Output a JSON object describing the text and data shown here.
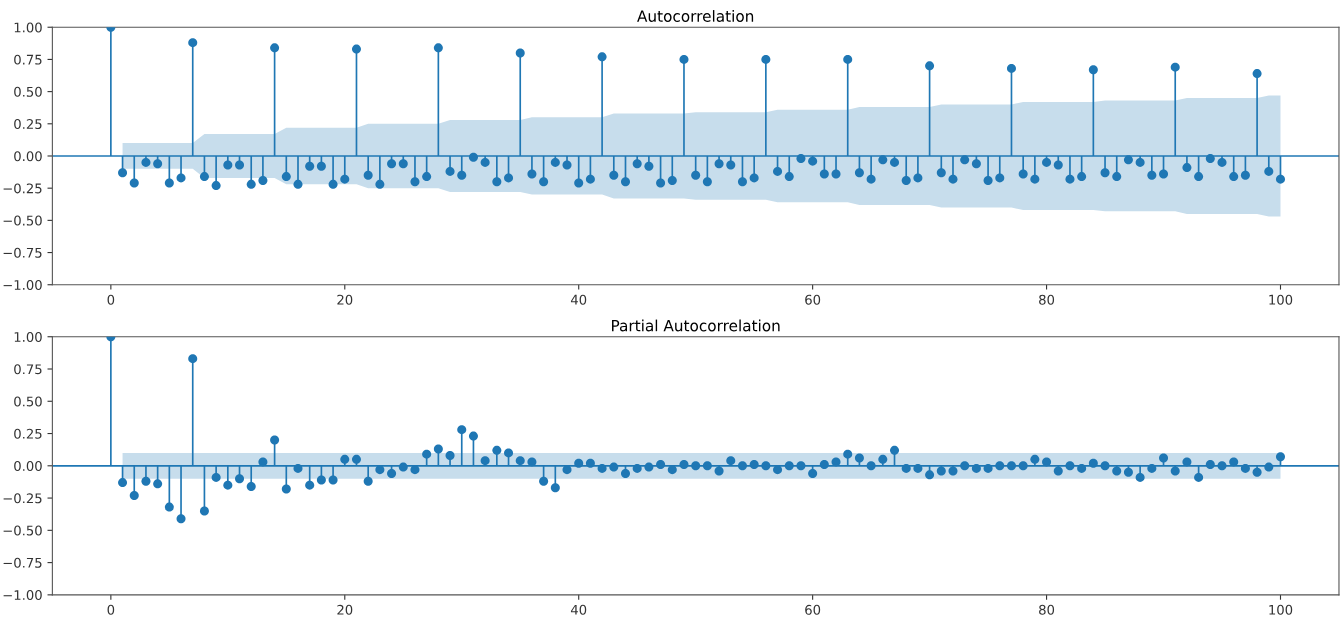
{
  "chart_data": [
    {
      "type": "lollipop",
      "title": "Autocorrelation",
      "grid": false,
      "xlim": [
        -5,
        105
      ],
      "xticks": [
        0,
        20,
        40,
        60,
        80,
        100
      ],
      "ylim": [
        -1,
        1
      ],
      "yticks": [
        {
          "value": -1,
          "label": "−1.00"
        },
        {
          "value": -0.75,
          "label": "−0.75"
        },
        {
          "value": -0.5,
          "label": "−0.50"
        },
        {
          "value": -0.25,
          "label": "−0.25"
        },
        {
          "value": 0,
          "label": "0.00"
        },
        {
          "value": 0.25,
          "label": "0.25"
        },
        {
          "value": 0.5,
          "label": "0.50"
        },
        {
          "value": 0.75,
          "label": "0.75"
        },
        {
          "value": 1,
          "label": "1.00"
        }
      ],
      "marker": "circle",
      "x": [
        0,
        1,
        2,
        3,
        4,
        5,
        6,
        7,
        8,
        9,
        10,
        11,
        12,
        13,
        14,
        15,
        16,
        17,
        18,
        19,
        20,
        21,
        22,
        23,
        24,
        25,
        26,
        27,
        28,
        29,
        30,
        31,
        32,
        33,
        34,
        35,
        36,
        37,
        38,
        39,
        40,
        41,
        42,
        43,
        44,
        45,
        46,
        47,
        48,
        49,
        50,
        51,
        52,
        53,
        54,
        55,
        56,
        57,
        58,
        59,
        60,
        61,
        62,
        63,
        64,
        65,
        66,
        67,
        68,
        69,
        70,
        71,
        72,
        73,
        74,
        75,
        76,
        77,
        78,
        79,
        80,
        81,
        82,
        83,
        84,
        85,
        86,
        87,
        88,
        89,
        90,
        91,
        92,
        93,
        94,
        95,
        96,
        97,
        98,
        99,
        100
      ],
      "ref_lines": [
        {
          "axis": "y",
          "value": 0,
          "color": "#1f77b4",
          "line_style": "solid"
        }
      ],
      "series": [
        {
          "color": "#1f77b4",
          "values": [
            1.0,
            -0.13,
            -0.21,
            -0.05,
            -0.06,
            -0.21,
            -0.17,
            0.88,
            -0.16,
            -0.23,
            -0.07,
            -0.07,
            -0.22,
            -0.19,
            0.84,
            -0.16,
            -0.22,
            -0.08,
            -0.08,
            -0.22,
            -0.18,
            0.83,
            -0.15,
            -0.22,
            -0.06,
            -0.06,
            -0.2,
            -0.16,
            0.84,
            -0.12,
            -0.15,
            -0.01,
            -0.05,
            -0.2,
            -0.17,
            0.8,
            -0.14,
            -0.2,
            -0.05,
            -0.07,
            -0.21,
            -0.18,
            0.77,
            -0.15,
            -0.2,
            -0.06,
            -0.08,
            -0.21,
            -0.19,
            0.75,
            -0.15,
            -0.2,
            -0.06,
            -0.07,
            -0.2,
            -0.17,
            0.75,
            -0.12,
            -0.16,
            -0.02,
            -0.04,
            -0.14,
            -0.14,
            0.75,
            -0.13,
            -0.18,
            -0.03,
            -0.05,
            -0.19,
            -0.17,
            0.7,
            -0.13,
            -0.18,
            -0.03,
            -0.06,
            -0.19,
            -0.17,
            0.68,
            -0.14,
            -0.18,
            -0.05,
            -0.07,
            -0.18,
            -0.16,
            0.67,
            -0.13,
            -0.16,
            -0.03,
            -0.05,
            -0.15,
            -0.14,
            0.69,
            -0.09,
            -0.16,
            -0.02,
            -0.05,
            -0.16,
            -0.15,
            0.64,
            -0.12,
            -0.18
          ],
          "lower": [
            null,
            -0.1,
            -0.1,
            -0.1,
            -0.1,
            -0.1,
            -0.1,
            -0.1,
            -0.17,
            -0.17,
            -0.17,
            -0.17,
            -0.17,
            -0.17,
            -0.17,
            -0.22,
            -0.22,
            -0.22,
            -0.22,
            -0.22,
            -0.22,
            -0.22,
            -0.25,
            -0.25,
            -0.25,
            -0.25,
            -0.25,
            -0.25,
            -0.25,
            -0.28,
            -0.28,
            -0.28,
            -0.28,
            -0.28,
            -0.28,
            -0.28,
            -0.3,
            -0.3,
            -0.3,
            -0.3,
            -0.3,
            -0.3,
            -0.3,
            -0.33,
            -0.33,
            -0.33,
            -0.33,
            -0.33,
            -0.33,
            -0.33,
            -0.34,
            -0.34,
            -0.34,
            -0.34,
            -0.34,
            -0.34,
            -0.34,
            -0.36,
            -0.36,
            -0.36,
            -0.36,
            -0.36,
            -0.36,
            -0.36,
            -0.38,
            -0.38,
            -0.38,
            -0.38,
            -0.38,
            -0.38,
            -0.38,
            -0.4,
            -0.4,
            -0.4,
            -0.4,
            -0.4,
            -0.4,
            -0.4,
            -0.42,
            -0.42,
            -0.42,
            -0.42,
            -0.42,
            -0.42,
            -0.42,
            -0.43,
            -0.43,
            -0.43,
            -0.43,
            -0.43,
            -0.43,
            -0.43,
            -0.45,
            -0.45,
            -0.45,
            -0.45,
            -0.45,
            -0.45,
            -0.45,
            -0.47,
            -0.47
          ],
          "upper": [
            null,
            0.1,
            0.1,
            0.1,
            0.1,
            0.1,
            0.1,
            0.1,
            0.17,
            0.17,
            0.17,
            0.17,
            0.17,
            0.17,
            0.17,
            0.22,
            0.22,
            0.22,
            0.22,
            0.22,
            0.22,
            0.22,
            0.25,
            0.25,
            0.25,
            0.25,
            0.25,
            0.25,
            0.25,
            0.28,
            0.28,
            0.28,
            0.28,
            0.28,
            0.28,
            0.28,
            0.3,
            0.3,
            0.3,
            0.3,
            0.3,
            0.3,
            0.3,
            0.33,
            0.33,
            0.33,
            0.33,
            0.33,
            0.33,
            0.33,
            0.34,
            0.34,
            0.34,
            0.34,
            0.34,
            0.34,
            0.34,
            0.36,
            0.36,
            0.36,
            0.36,
            0.36,
            0.36,
            0.36,
            0.38,
            0.38,
            0.38,
            0.38,
            0.38,
            0.38,
            0.38,
            0.4,
            0.4,
            0.4,
            0.4,
            0.4,
            0.4,
            0.4,
            0.42,
            0.42,
            0.42,
            0.42,
            0.42,
            0.42,
            0.42,
            0.43,
            0.43,
            0.43,
            0.43,
            0.43,
            0.43,
            0.43,
            0.45,
            0.45,
            0.45,
            0.45,
            0.45,
            0.45,
            0.45,
            0.47,
            0.47
          ]
        }
      ]
    },
    {
      "type": "lollipop",
      "title": "Partial Autocorrelation",
      "grid": false,
      "xlim": [
        -5,
        105
      ],
      "xticks": [
        0,
        20,
        40,
        60,
        80,
        100
      ],
      "ylim": [
        -1,
        1
      ],
      "yticks": [
        {
          "value": -1,
          "label": "−1.00"
        },
        {
          "value": -0.75,
          "label": "−0.75"
        },
        {
          "value": -0.5,
          "label": "−0.50"
        },
        {
          "value": -0.25,
          "label": "−0.25"
        },
        {
          "value": 0,
          "label": "0.00"
        },
        {
          "value": 0.25,
          "label": "0.25"
        },
        {
          "value": 0.5,
          "label": "0.50"
        },
        {
          "value": 0.75,
          "label": "0.75"
        },
        {
          "value": 1,
          "label": "1.00"
        }
      ],
      "marker": "circle",
      "x": [
        0,
        1,
        2,
        3,
        4,
        5,
        6,
        7,
        8,
        9,
        10,
        11,
        12,
        13,
        14,
        15,
        16,
        17,
        18,
        19,
        20,
        21,
        22,
        23,
        24,
        25,
        26,
        27,
        28,
        29,
        30,
        31,
        32,
        33,
        34,
        35,
        36,
        37,
        38,
        39,
        40,
        41,
        42,
        43,
        44,
        45,
        46,
        47,
        48,
        49,
        50,
        51,
        52,
        53,
        54,
        55,
        56,
        57,
        58,
        59,
        60,
        61,
        62,
        63,
        64,
        65,
        66,
        67,
        68,
        69,
        70,
        71,
        72,
        73,
        74,
        75,
        76,
        77,
        78,
        79,
        80,
        81,
        82,
        83,
        84,
        85,
        86,
        87,
        88,
        89,
        90,
        91,
        92,
        93,
        94,
        95,
        96,
        97,
        98,
        99,
        100
      ],
      "ref_lines": [
        {
          "axis": "y",
          "value": 0,
          "color": "#1f77b4",
          "line_style": "solid"
        }
      ],
      "series": [
        {
          "color": "#1f77b4",
          "values": [
            1.0,
            -0.13,
            -0.23,
            -0.12,
            -0.14,
            -0.32,
            -0.41,
            0.83,
            -0.35,
            -0.09,
            -0.15,
            -0.1,
            -0.16,
            0.03,
            0.2,
            -0.18,
            -0.02,
            -0.15,
            -0.11,
            -0.11,
            0.05,
            0.05,
            -0.12,
            -0.03,
            -0.06,
            -0.01,
            -0.03,
            0.09,
            0.13,
            0.08,
            0.28,
            0.23,
            0.04,
            0.12,
            0.1,
            0.04,
            0.03,
            -0.12,
            -0.17,
            -0.03,
            0.02,
            0.02,
            -0.02,
            -0.01,
            -0.06,
            -0.02,
            -0.01,
            0.01,
            -0.03,
            0.01,
            0.0,
            0.0,
            -0.04,
            0.04,
            0.0,
            0.01,
            0.0,
            -0.03,
            0.0,
            0.0,
            -0.06,
            0.01,
            0.03,
            0.09,
            0.06,
            0.0,
            0.05,
            0.12,
            -0.02,
            -0.02,
            -0.07,
            -0.04,
            -0.04,
            0.0,
            -0.02,
            -0.02,
            0.0,
            0.0,
            0.0,
            0.05,
            0.03,
            -0.04,
            0.0,
            -0.02,
            0.02,
            0.0,
            -0.04,
            -0.05,
            -0.09,
            -0.02,
            0.06,
            -0.04,
            0.03,
            -0.09,
            0.01,
            0.0,
            0.03,
            -0.02,
            -0.05,
            -0.01,
            0.07
          ],
          "lower": [
            null,
            -0.1,
            -0.1,
            -0.1,
            -0.1,
            -0.1,
            -0.1,
            -0.1,
            -0.1,
            -0.1,
            -0.1,
            -0.1,
            -0.1,
            -0.1,
            -0.1,
            -0.1,
            -0.1,
            -0.1,
            -0.1,
            -0.1,
            -0.1,
            -0.1,
            -0.1,
            -0.1,
            -0.1,
            -0.1,
            -0.1,
            -0.1,
            -0.1,
            -0.1,
            -0.1,
            -0.1,
            -0.1,
            -0.1,
            -0.1,
            -0.1,
            -0.1,
            -0.1,
            -0.1,
            -0.1,
            -0.1,
            -0.1,
            -0.1,
            -0.1,
            -0.1,
            -0.1,
            -0.1,
            -0.1,
            -0.1,
            -0.1,
            -0.1,
            -0.1,
            -0.1,
            -0.1,
            -0.1,
            -0.1,
            -0.1,
            -0.1,
            -0.1,
            -0.1,
            -0.1,
            -0.1,
            -0.1,
            -0.1,
            -0.1,
            -0.1,
            -0.1,
            -0.1,
            -0.1,
            -0.1,
            -0.1,
            -0.1,
            -0.1,
            -0.1,
            -0.1,
            -0.1,
            -0.1,
            -0.1,
            -0.1,
            -0.1,
            -0.1,
            -0.1,
            -0.1,
            -0.1,
            -0.1,
            -0.1,
            -0.1,
            -0.1,
            -0.1,
            -0.1,
            -0.1,
            -0.1,
            -0.1,
            -0.1,
            -0.1,
            -0.1,
            -0.1,
            -0.1,
            -0.1,
            -0.1,
            -0.1
          ],
          "upper": [
            null,
            0.1,
            0.1,
            0.1,
            0.1,
            0.1,
            0.1,
            0.1,
            0.1,
            0.1,
            0.1,
            0.1,
            0.1,
            0.1,
            0.1,
            0.1,
            0.1,
            0.1,
            0.1,
            0.1,
            0.1,
            0.1,
            0.1,
            0.1,
            0.1,
            0.1,
            0.1,
            0.1,
            0.1,
            0.1,
            0.1,
            0.1,
            0.1,
            0.1,
            0.1,
            0.1,
            0.1,
            0.1,
            0.1,
            0.1,
            0.1,
            0.1,
            0.1,
            0.1,
            0.1,
            0.1,
            0.1,
            0.1,
            0.1,
            0.1,
            0.1,
            0.1,
            0.1,
            0.1,
            0.1,
            0.1,
            0.1,
            0.1,
            0.1,
            0.1,
            0.1,
            0.1,
            0.1,
            0.1,
            0.1,
            0.1,
            0.1,
            0.1,
            0.1,
            0.1,
            0.1,
            0.1,
            0.1,
            0.1,
            0.1,
            0.1,
            0.1,
            0.1,
            0.1,
            0.1,
            0.1,
            0.1,
            0.1,
            0.1,
            0.1,
            0.1,
            0.1,
            0.1,
            0.1,
            0.1,
            0.1,
            0.1,
            0.1,
            0.1,
            0.1,
            0.1,
            0.1,
            0.1,
            0.1,
            0.1,
            0.1
          ]
        }
      ]
    }
  ]
}
